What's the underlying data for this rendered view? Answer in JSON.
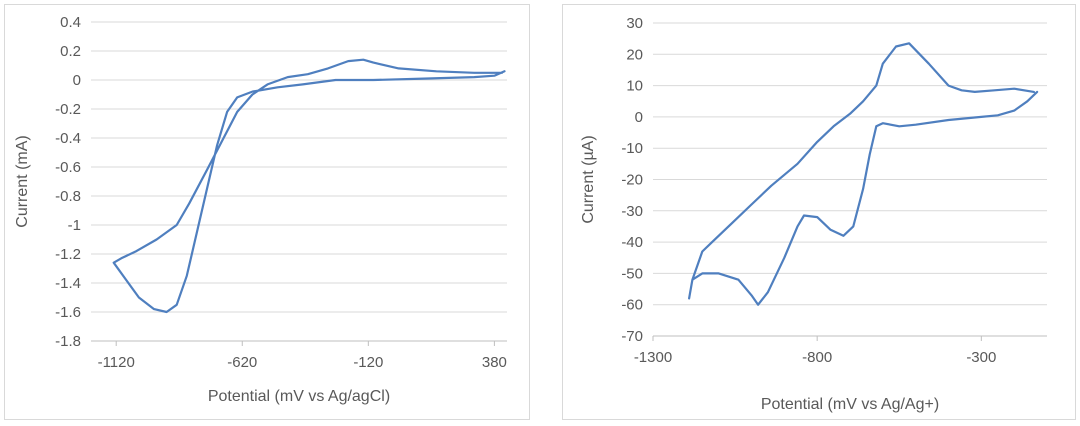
{
  "chart_data": [
    {
      "type": "line",
      "xlabel": "Potential (mV vs Ag/agCl)",
      "ylabel": "Current (mA)",
      "xlim": [
        -1220,
        430
      ],
      "ylim": [
        -1.8,
        0.4
      ],
      "x_ticks": [
        -1120,
        -620,
        -120,
        380
      ],
      "y_ticks": [
        -1.8,
        -1.6,
        -1.4,
        -1.2,
        -1,
        -0.8,
        -0.6,
        -0.4,
        -0.2,
        0,
        0.2,
        0.4
      ],
      "x_tick_labels": [
        "-1120",
        "-620",
        "-120",
        "380"
      ],
      "y_tick_labels": [
        "-1.8",
        "-1.6",
        "-1.4",
        "-1.2",
        "-1",
        "-0.8",
        "-0.6",
        "-0.4",
        "-0.2",
        "0",
        "0.2",
        "0.4"
      ],
      "grid": "horizontal",
      "series": [
        {
          "color": "#4f7fbf",
          "points": [
            [
              410,
              0.05
            ],
            [
              300,
              0.05
            ],
            [
              150,
              0.06
            ],
            [
              0,
              0.08
            ],
            [
              -100,
              0.12
            ],
            [
              -140,
              0.14
            ],
            [
              -200,
              0.13
            ],
            [
              -280,
              0.08
            ],
            [
              -360,
              0.04
            ],
            [
              -440,
              0.02
            ],
            [
              -520,
              -0.03
            ],
            [
              -580,
              -0.1
            ],
            [
              -640,
              -0.22
            ],
            [
              -700,
              -0.42
            ],
            [
              -760,
              -0.62
            ],
            [
              -830,
              -0.85
            ],
            [
              -880,
              -1.0
            ],
            [
              -960,
              -1.1
            ],
            [
              -1040,
              -1.18
            ],
            [
              -1100,
              -1.23
            ],
            [
              -1130,
              -1.26
            ],
            [
              -1080,
              -1.38
            ],
            [
              -1030,
              -1.5
            ],
            [
              -970,
              -1.58
            ],
            [
              -920,
              -1.6
            ],
            [
              -880,
              -1.55
            ],
            [
              -840,
              -1.35
            ],
            [
              -800,
              -1.05
            ],
            [
              -760,
              -0.75
            ],
            [
              -720,
              -0.45
            ],
            [
              -680,
              -0.22
            ],
            [
              -640,
              -0.12
            ],
            [
              -580,
              -0.08
            ],
            [
              -480,
              -0.05
            ],
            [
              -380,
              -0.03
            ],
            [
              -250,
              0.0
            ],
            [
              -100,
              0.0
            ],
            [
              100,
              0.01
            ],
            [
              300,
              0.02
            ],
            [
              380,
              0.03
            ],
            [
              420,
              0.06
            ]
          ]
        }
      ]
    },
    {
      "type": "line",
      "xlabel": "Potential (mV vs Ag/Ag+)",
      "ylabel": "Current (µA)",
      "xlim": [
        -1300,
        -100
      ],
      "ylim": [
        -70,
        30
      ],
      "x_ticks": [
        -1300,
        -800,
        -300
      ],
      "y_ticks": [
        -70,
        -60,
        -50,
        -40,
        -30,
        -20,
        -10,
        0,
        10,
        20,
        30
      ],
      "x_tick_labels": [
        "-1300",
        "-800",
        "-300"
      ],
      "y_tick_labels": [
        "-70",
        "-60",
        "-50",
        "-40",
        "-30",
        "-20",
        "-10",
        "0",
        "10",
        "20",
        "30"
      ],
      "grid": "horizontal",
      "series": [
        {
          "color": "#4f7fbf",
          "points": [
            [
              -140,
              8
            ],
            [
              -200,
              9
            ],
            [
              -260,
              8.5
            ],
            [
              -320,
              8
            ],
            [
              -360,
              8.5
            ],
            [
              -400,
              10
            ],
            [
              -460,
              17
            ],
            [
              -520,
              23.5
            ],
            [
              -560,
              22.5
            ],
            [
              -600,
              17
            ],
            [
              -620,
              10
            ],
            [
              -660,
              5
            ],
            [
              -700,
              1
            ],
            [
              -750,
              -3
            ],
            [
              -800,
              -8
            ],
            [
              -860,
              -15
            ],
            [
              -940,
              -22
            ],
            [
              -1000,
              -28
            ],
            [
              -1060,
              -34
            ],
            [
              -1120,
              -40
            ],
            [
              -1150,
              -43
            ],
            [
              -1180,
              -52
            ],
            [
              -1190,
              -58
            ],
            [
              -1180,
              -52
            ],
            [
              -1150,
              -50
            ],
            [
              -1100,
              -50
            ],
            [
              -1040,
              -52
            ],
            [
              -1000,
              -57
            ],
            [
              -980,
              -60
            ],
            [
              -950,
              -56
            ],
            [
              -900,
              -45
            ],
            [
              -860,
              -35
            ],
            [
              -840,
              -31.5
            ],
            [
              -800,
              -32
            ],
            [
              -760,
              -36
            ],
            [
              -720,
              -38
            ],
            [
              -690,
              -35
            ],
            [
              -660,
              -23
            ],
            [
              -640,
              -12
            ],
            [
              -620,
              -3
            ],
            [
              -600,
              -2
            ],
            [
              -550,
              -3
            ],
            [
              -500,
              -2.5
            ],
            [
              -400,
              -1
            ],
            [
              -300,
              0
            ],
            [
              -250,
              0.5
            ],
            [
              -200,
              2
            ],
            [
              -160,
              5
            ],
            [
              -130,
              8
            ]
          ]
        }
      ]
    }
  ]
}
